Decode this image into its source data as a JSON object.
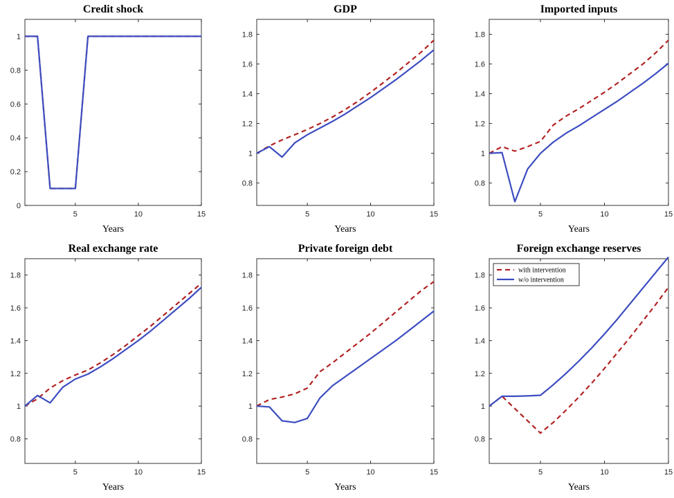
{
  "chart_data": [
    {
      "type": "line",
      "title": "Credit shock",
      "xlabel": "Years",
      "xlim": [
        1,
        15
      ],
      "ylim": [
        0,
        1.1
      ],
      "xticks": [
        5,
        10,
        15
      ],
      "yticks": [
        0,
        0.2,
        0.4,
        0.6,
        0.8,
        1
      ],
      "ytick_labels": [
        "0",
        "0.2",
        "0.4",
        "0.6",
        "0.8",
        "1"
      ],
      "x": [
        1,
        2,
        3,
        4,
        5,
        6,
        7,
        8,
        9,
        10,
        11,
        12,
        13,
        14,
        15
      ],
      "series": [
        {
          "values": [
            1,
            1,
            0.1,
            0.1,
            0.1,
            1,
            1,
            1,
            1,
            1,
            1,
            1,
            1,
            1,
            1
          ],
          "color": "#b22222",
          "style": "dashed"
        },
        {
          "values": [
            1,
            1,
            0.1,
            0.1,
            0.1,
            1,
            1,
            1,
            1,
            1,
            1,
            1,
            1,
            1,
            1
          ],
          "color": "#3b4cc0",
          "style": "solid"
        }
      ]
    },
    {
      "type": "line",
      "title": "GDP",
      "xlabel": "Years",
      "xlim": [
        1,
        15
      ],
      "ylim": [
        0.65,
        1.9
      ],
      "xticks": [
        5,
        10,
        15
      ],
      "yticks": [
        0.8,
        1,
        1.2,
        1.4,
        1.6,
        1.8
      ],
      "ytick_labels": [
        "0.8",
        "1",
        "1.2",
        "1.4",
        "1.6",
        "1.8"
      ],
      "x": [
        1,
        2,
        3,
        4,
        5,
        6,
        7,
        8,
        9,
        10,
        11,
        12,
        13,
        14,
        15
      ],
      "series": [
        {
          "values": [
            1.0,
            1.05,
            1.09,
            1.125,
            1.16,
            1.2,
            1.245,
            1.295,
            1.35,
            1.41,
            1.475,
            1.54,
            1.61,
            1.68,
            1.76
          ],
          "color": "#b22222",
          "style": "dashed"
        },
        {
          "values": [
            1.0,
            1.045,
            0.975,
            1.07,
            1.125,
            1.17,
            1.215,
            1.265,
            1.32,
            1.375,
            1.435,
            1.495,
            1.56,
            1.625,
            1.695
          ],
          "color": "#3b4cc0",
          "style": "solid"
        }
      ]
    },
    {
      "type": "line",
      "title": "Imported inputs",
      "xlabel": "Years",
      "xlim": [
        1,
        15
      ],
      "ylim": [
        0.65,
        1.9
      ],
      "xticks": [
        5,
        10,
        15
      ],
      "yticks": [
        0.8,
        1,
        1.2,
        1.4,
        1.6,
        1.8
      ],
      "ytick_labels": [
        "0.8",
        "1",
        "1.2",
        "1.4",
        "1.6",
        "1.8"
      ],
      "x": [
        1,
        2,
        3,
        4,
        5,
        6,
        7,
        8,
        9,
        10,
        11,
        12,
        13,
        14,
        15
      ],
      "series": [
        {
          "values": [
            1.0,
            1.045,
            1.015,
            1.045,
            1.08,
            1.19,
            1.25,
            1.3,
            1.355,
            1.41,
            1.47,
            1.535,
            1.6,
            1.675,
            1.76
          ],
          "color": "#b22222",
          "style": "dashed"
        },
        {
          "values": [
            1.0,
            1.005,
            0.675,
            0.895,
            1.0,
            1.075,
            1.135,
            1.185,
            1.24,
            1.295,
            1.35,
            1.41,
            1.47,
            1.535,
            1.605
          ],
          "color": "#3b4cc0",
          "style": "solid"
        }
      ]
    },
    {
      "type": "line",
      "title": "Real exchange rate",
      "xlabel": "Years",
      "xlim": [
        1,
        15
      ],
      "ylim": [
        0.65,
        1.9
      ],
      "xticks": [
        5,
        10,
        15
      ],
      "yticks": [
        0.8,
        1,
        1.2,
        1.4,
        1.6,
        1.8
      ],
      "ytick_labels": [
        "0.8",
        "1",
        "1.2",
        "1.4",
        "1.6",
        "1.8"
      ],
      "x": [
        1,
        2,
        3,
        4,
        5,
        6,
        7,
        8,
        9,
        10,
        11,
        12,
        13,
        14,
        15
      ],
      "series": [
        {
          "values": [
            1.0,
            1.045,
            1.11,
            1.155,
            1.19,
            1.22,
            1.265,
            1.315,
            1.37,
            1.43,
            1.49,
            1.555,
            1.62,
            1.685,
            1.75
          ],
          "color": "#b22222",
          "style": "dashed"
        },
        {
          "values": [
            1.0,
            1.065,
            1.02,
            1.115,
            1.165,
            1.195,
            1.24,
            1.29,
            1.345,
            1.4,
            1.46,
            1.525,
            1.59,
            1.655,
            1.725
          ],
          "color": "#3b4cc0",
          "style": "solid"
        }
      ]
    },
    {
      "type": "line",
      "title": "Private foreign debt",
      "xlabel": "Years",
      "xlim": [
        1,
        15
      ],
      "ylim": [
        0.65,
        1.9
      ],
      "xticks": [
        5,
        10,
        15
      ],
      "yticks": [
        0.8,
        1,
        1.2,
        1.4,
        1.6,
        1.8
      ],
      "ytick_labels": [
        "0.8",
        "1",
        "1.2",
        "1.4",
        "1.6",
        "1.8"
      ],
      "x": [
        1,
        2,
        3,
        4,
        5,
        6,
        7,
        8,
        9,
        10,
        11,
        12,
        13,
        14,
        15
      ],
      "series": [
        {
          "values": [
            1.0,
            1.04,
            1.055,
            1.075,
            1.11,
            1.21,
            1.265,
            1.325,
            1.385,
            1.445,
            1.51,
            1.575,
            1.64,
            1.705,
            1.76
          ],
          "color": "#b22222",
          "style": "dashed"
        },
        {
          "values": [
            1.0,
            0.995,
            0.91,
            0.9,
            0.925,
            1.05,
            1.125,
            1.18,
            1.235,
            1.29,
            1.345,
            1.4,
            1.46,
            1.52,
            1.58
          ],
          "color": "#3b4cc0",
          "style": "solid"
        }
      ]
    },
    {
      "type": "line",
      "title": "Foreign exchange reserves",
      "xlabel": "Years",
      "xlim": [
        1,
        15
      ],
      "ylim": [
        0.65,
        1.9
      ],
      "xticks": [
        5,
        10,
        15
      ],
      "yticks": [
        0.8,
        1,
        1.2,
        1.4,
        1.6,
        1.8
      ],
      "ytick_labels": [
        "0.8",
        "1",
        "1.2",
        "1.4",
        "1.6",
        "1.8"
      ],
      "x": [
        1,
        2,
        3,
        4,
        5,
        6,
        7,
        8,
        9,
        10,
        11,
        12,
        13,
        14,
        15
      ],
      "legend": {
        "position": "top-left"
      },
      "series": [
        {
          "name": "with intervention",
          "values": [
            1.0,
            1.06,
            0.985,
            0.91,
            0.835,
            0.9,
            0.975,
            1.055,
            1.14,
            1.23,
            1.325,
            1.42,
            1.52,
            1.62,
            1.725
          ],
          "color": "#b22222",
          "style": "dashed"
        },
        {
          "name": "w/o intervention",
          "values": [
            1.0,
            1.06,
            1.06,
            1.062,
            1.066,
            1.13,
            1.2,
            1.275,
            1.355,
            1.44,
            1.53,
            1.625,
            1.72,
            1.815,
            1.91
          ],
          "color": "#3b4cc0",
          "style": "solid"
        }
      ]
    }
  ]
}
